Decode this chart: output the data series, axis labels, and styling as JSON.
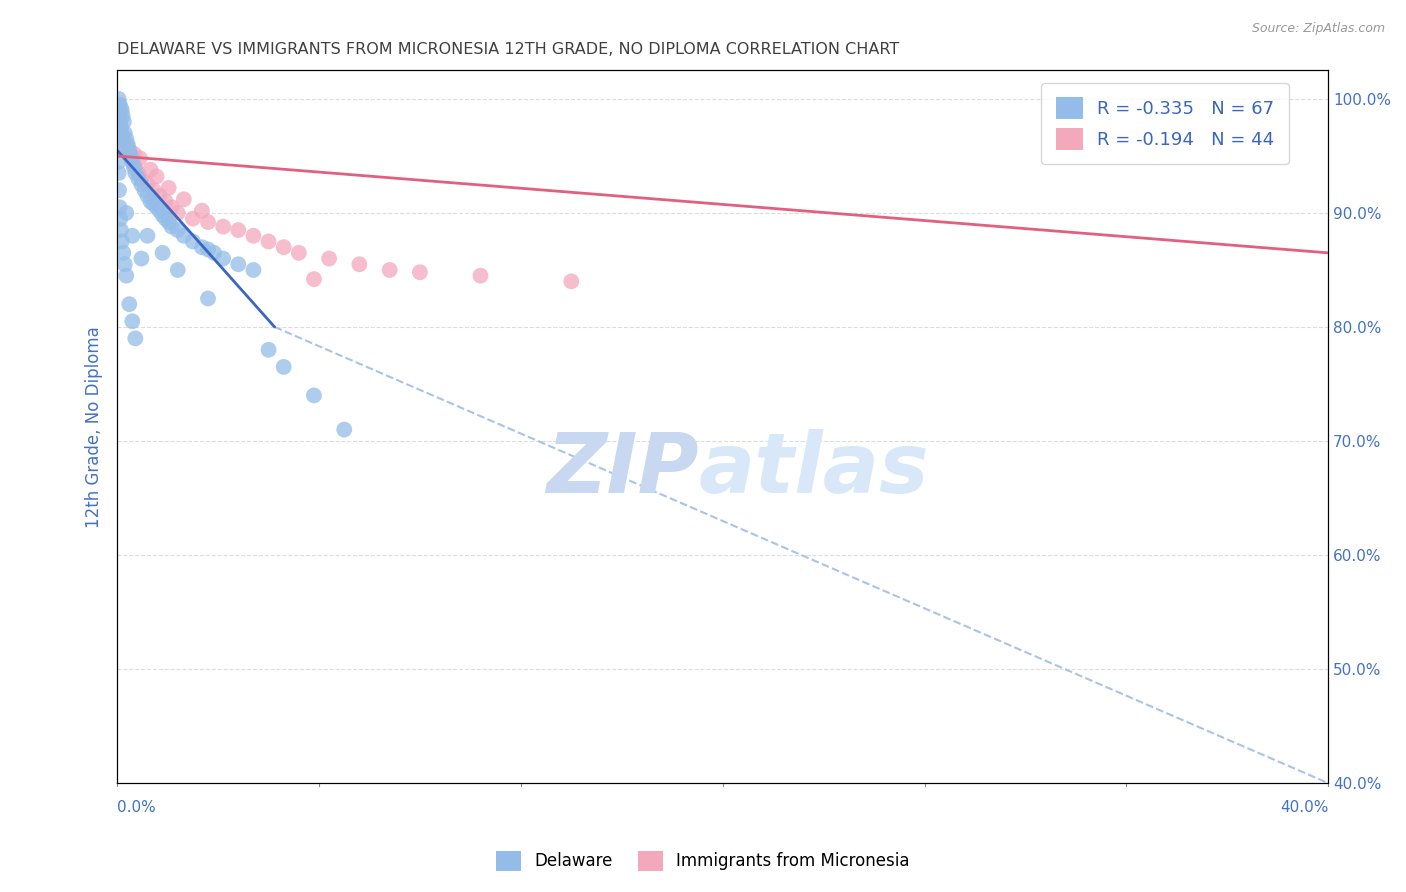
{
  "title": "DELAWARE VS IMMIGRANTS FROM MICRONESIA 12TH GRADE, NO DIPLOMA CORRELATION CHART",
  "source": "Source: ZipAtlas.com",
  "ylabel": "12th Grade, No Diploma",
  "ytick_vals": [
    40.0,
    50.0,
    60.0,
    70.0,
    80.0,
    90.0,
    100.0
  ],
  "xlim": [
    0.0,
    40.0
  ],
  "ylim": [
    40.0,
    102.5
  ],
  "legend_entry1": "R = -0.335   N = 67",
  "legend_entry2": "R = -0.194   N = 44",
  "legend_label1": "Delaware",
  "legend_label2": "Immigrants from Micronesia",
  "watermark_zip": "ZIP",
  "watermark_atlas": "atlas",
  "blue_scatter_color": "#93BDE8",
  "pink_scatter_color": "#F4A8BC",
  "blue_line_color": "#3A65C0",
  "pink_line_color": "#E06080",
  "dashed_line_color": "#A8C4E8",
  "legend_text_color": "#3A65C0",
  "title_color": "#404040",
  "axis_color": "#4472C4",
  "watermark_color": "#C8D8F0",
  "background_color": "#FFFFFF",
  "grid_color": "#DDDDDD",
  "blue_line_x0": 0.0,
  "blue_line_y0": 95.5,
  "blue_line_x1": 5.2,
  "blue_line_y1": 80.0,
  "pink_line_x0": 0.0,
  "pink_line_y0": 95.0,
  "pink_line_x1": 40.0,
  "pink_line_y1": 86.5,
  "dash_line_x0": 5.2,
  "dash_line_y0": 80.0,
  "dash_line_x1": 40.0,
  "dash_line_y1": 40.0,
  "delaware_x": [
    0.05,
    0.08,
    0.12,
    0.05,
    0.07,
    0.09,
    0.05,
    0.06,
    0.15,
    0.18,
    0.22,
    0.12,
    0.25,
    0.3,
    0.35,
    0.4,
    0.45,
    0.5,
    0.55,
    0.6,
    0.7,
    0.8,
    0.9,
    1.0,
    1.1,
    1.2,
    1.3,
    1.4,
    1.5,
    1.6,
    1.7,
    1.8,
    2.0,
    2.2,
    2.5,
    2.8,
    3.0,
    3.2,
    3.5,
    4.0,
    4.5,
    0.05,
    0.05,
    0.05,
    0.05,
    0.06,
    0.08,
    0.1,
    0.12,
    0.15,
    0.2,
    0.25,
    0.3,
    0.4,
    0.5,
    0.6,
    1.0,
    1.5,
    2.0,
    3.0,
    5.0,
    5.5,
    6.5,
    7.5,
    0.3,
    0.5,
    0.8
  ],
  "delaware_y": [
    100.0,
    99.5,
    99.2,
    98.8,
    98.5,
    98.0,
    97.5,
    97.0,
    99.0,
    98.5,
    98.0,
    97.5,
    97.0,
    96.5,
    96.0,
    95.5,
    95.0,
    94.5,
    94.0,
    93.5,
    93.0,
    92.5,
    92.0,
    91.5,
    91.0,
    90.8,
    90.5,
    90.2,
    89.8,
    89.5,
    89.2,
    88.8,
    88.5,
    88.0,
    87.5,
    87.0,
    86.8,
    86.5,
    86.0,
    85.5,
    85.0,
    96.5,
    95.5,
    94.5,
    93.5,
    92.0,
    90.5,
    89.5,
    88.5,
    87.5,
    86.5,
    85.5,
    84.5,
    82.0,
    80.5,
    79.0,
    88.0,
    86.5,
    85.0,
    82.5,
    78.0,
    76.5,
    74.0,
    71.0,
    90.0,
    88.0,
    86.0
  ],
  "micronesia_x": [
    0.05,
    0.07,
    0.1,
    0.08,
    0.12,
    0.15,
    0.18,
    0.22,
    0.3,
    0.4,
    0.5,
    0.6,
    0.7,
    0.8,
    1.0,
    1.2,
    1.4,
    1.6,
    1.8,
    2.0,
    2.5,
    3.0,
    3.5,
    4.0,
    4.5,
    5.0,
    5.5,
    6.0,
    7.0,
    8.0,
    9.0,
    10.0,
    12.0,
    15.0,
    0.2,
    0.35,
    0.55,
    0.75,
    1.1,
    1.3,
    1.7,
    2.2,
    2.8,
    6.5
  ],
  "micronesia_y": [
    99.5,
    99.0,
    98.5,
    98.0,
    97.5,
    97.0,
    96.5,
    96.0,
    95.5,
    95.0,
    94.5,
    94.0,
    93.5,
    93.0,
    92.5,
    92.0,
    91.5,
    91.0,
    90.5,
    90.0,
    89.5,
    89.2,
    88.8,
    88.5,
    88.0,
    87.5,
    87.0,
    86.5,
    86.0,
    85.5,
    85.0,
    84.8,
    84.5,
    84.0,
    96.2,
    95.8,
    95.2,
    94.8,
    93.8,
    93.2,
    92.2,
    91.2,
    90.2,
    84.2
  ]
}
